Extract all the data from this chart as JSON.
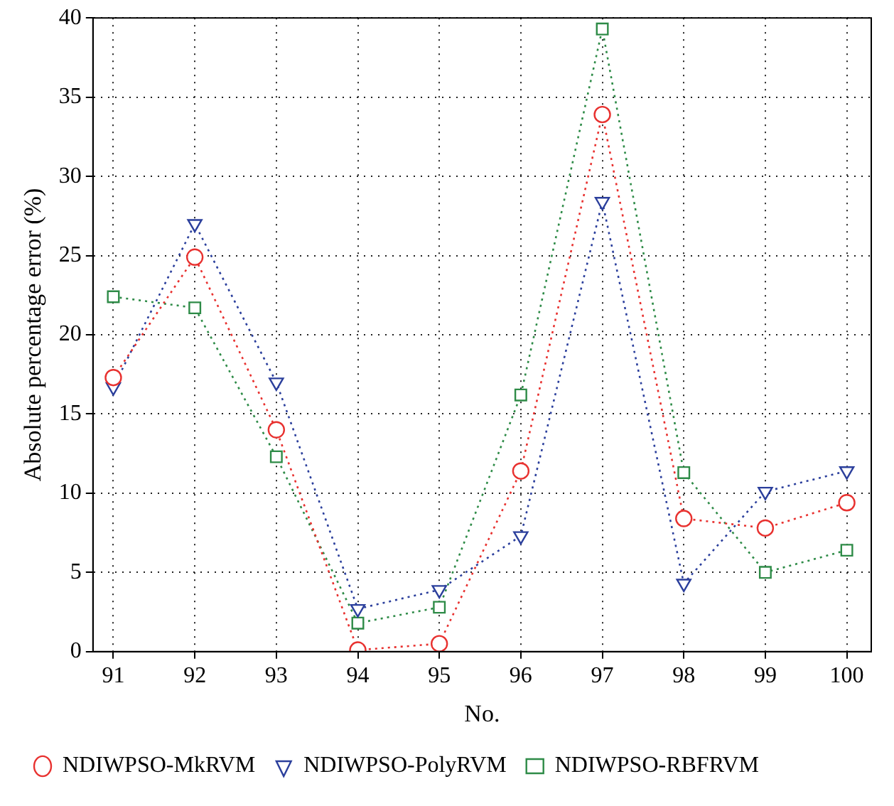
{
  "chart_data": {
    "type": "line",
    "xlabel": "No.",
    "ylabel": "Absolute percentage error (%)",
    "x": [
      91,
      92,
      93,
      94,
      95,
      96,
      97,
      98,
      99,
      100
    ],
    "xlim": [
      90.75,
      100.3
    ],
    "xticks": [
      91,
      92,
      93,
      94,
      95,
      96,
      97,
      98,
      99,
      100
    ],
    "ylim": [
      0,
      40
    ],
    "yticks": [
      0,
      5,
      10,
      15,
      20,
      25,
      30,
      35,
      40
    ],
    "grid": true,
    "legend": "bottom",
    "line_style": "dotted",
    "series": [
      {
        "name": "NDIWPSO-MkRVM",
        "color": "#e8312f",
        "marker": "circle",
        "values": [
          17.3,
          24.9,
          14.0,
          0.1,
          0.5,
          11.4,
          33.9,
          8.4,
          7.8,
          9.4
        ]
      },
      {
        "name": "NDIWPSO-PolyRVM",
        "color": "#2b3f9c",
        "marker": "triangle",
        "values": [
          16.7,
          27.0,
          17.0,
          2.7,
          3.9,
          7.3,
          28.4,
          4.3,
          10.1,
          11.4
        ]
      },
      {
        "name": "NDIWPSO-RBFRVM",
        "color": "#2e8b47",
        "marker": "square",
        "values": [
          22.4,
          21.7,
          12.3,
          1.8,
          2.8,
          16.2,
          39.3,
          11.3,
          5.0,
          6.4
        ]
      }
    ]
  }
}
